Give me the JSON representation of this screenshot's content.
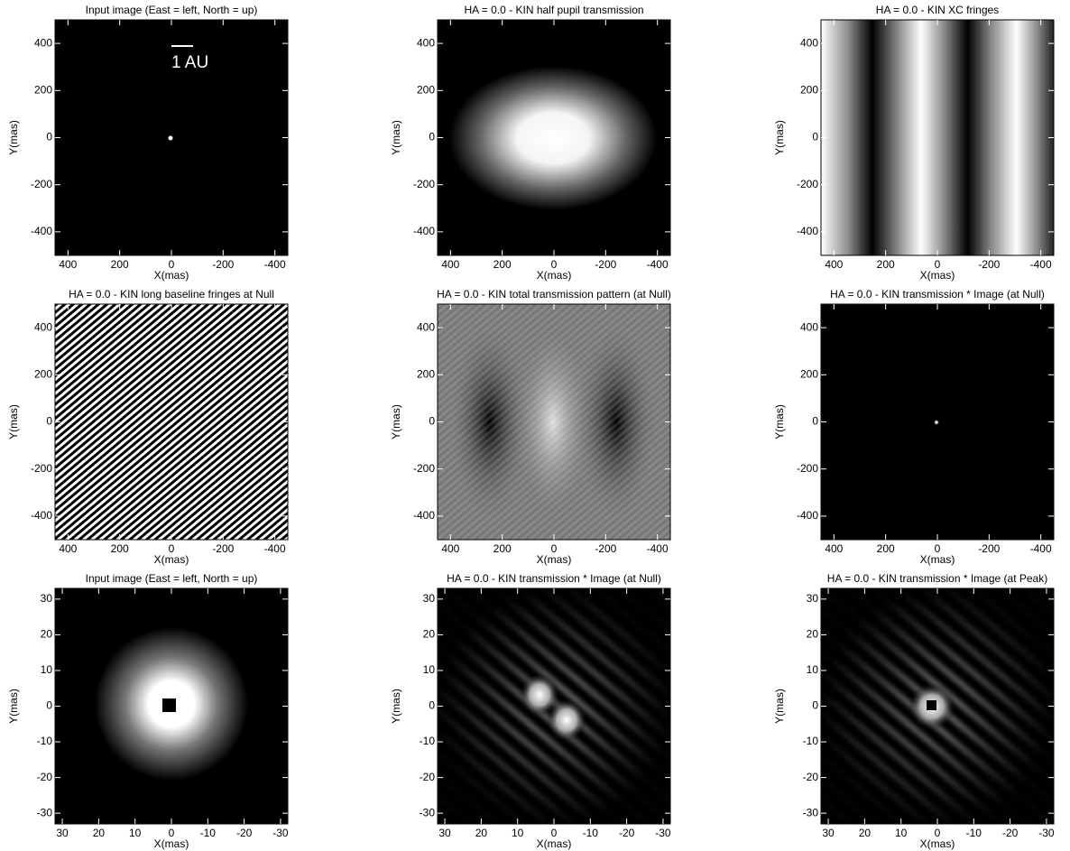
{
  "chart_data": [
    {
      "type": "image",
      "title": "Input image (East = left, North = up)",
      "annotation": "1 AU",
      "xlabel": "X(mas)",
      "ylabel": "Y(mas)",
      "xlim": [
        450,
        -450
      ],
      "ylim": [
        -500,
        500
      ],
      "xticks": [
        400,
        200,
        0,
        -200,
        -400
      ],
      "yticks": [
        -400,
        -200,
        0,
        200,
        400
      ]
    },
    {
      "type": "image",
      "title": "HA = 0.0 - KIN half pupil transmission",
      "xlabel": "X(mas)",
      "ylabel": "Y(mas)",
      "xlim": [
        450,
        -450
      ],
      "ylim": [
        -500,
        500
      ],
      "xticks": [
        400,
        200,
        0,
        -200,
        -400
      ],
      "yticks": [
        -400,
        -200,
        0,
        200,
        400
      ]
    },
    {
      "type": "image",
      "title": "HA = 0.0 - KIN XC fringes",
      "xlabel": "X(mas)",
      "ylabel": "Y(mas)",
      "xlim": [
        450,
        -450
      ],
      "ylim": [
        -500,
        500
      ],
      "xticks": [
        400,
        200,
        0,
        -200,
        -400
      ],
      "yticks": [
        -400,
        -200,
        0,
        200,
        400
      ]
    },
    {
      "type": "image",
      "title": "HA = 0.0 - KIN long baseline fringes at Null",
      "xlabel": "X(mas)",
      "ylabel": "Y(mas)",
      "xlim": [
        450,
        -450
      ],
      "ylim": [
        -500,
        500
      ],
      "xticks": [
        400,
        200,
        0,
        -200,
        -400
      ],
      "yticks": [
        -400,
        -200,
        0,
        200,
        400
      ]
    },
    {
      "type": "image",
      "title": "HA = 0.0 - KIN total transmission pattern (at Null)",
      "xlabel": "X(mas)",
      "ylabel": "Y(mas)",
      "xlim": [
        450,
        -450
      ],
      "ylim": [
        -500,
        500
      ],
      "xticks": [
        400,
        200,
        0,
        -200,
        -400
      ],
      "yticks": [
        -400,
        -200,
        0,
        200,
        400
      ]
    },
    {
      "type": "image",
      "title": "HA = 0.0 - KIN transmission * Image (at Null)",
      "xlabel": "X(mas)",
      "ylabel": "Y(mas)",
      "xlim": [
        450,
        -450
      ],
      "ylim": [
        -500,
        500
      ],
      "xticks": [
        400,
        200,
        0,
        -200,
        -400
      ],
      "yticks": [
        -400,
        -200,
        0,
        200,
        400
      ]
    },
    {
      "type": "image",
      "title": "Input image (East = left, North = up)",
      "xlabel": "X(mas)",
      "ylabel": "Y(mas)",
      "xlim": [
        32,
        -32
      ],
      "ylim": [
        -33,
        33
      ],
      "xticks": [
        30,
        20,
        10,
        0,
        -10,
        -20,
        -30
      ],
      "yticks": [
        -30,
        -20,
        -10,
        0,
        10,
        20,
        30
      ]
    },
    {
      "type": "image",
      "title": "HA = 0.0 - KIN transmission * Image (at Null)",
      "xlabel": "X(mas)",
      "ylabel": "Y(mas)",
      "xlim": [
        32,
        -32
      ],
      "ylim": [
        -33,
        33
      ],
      "xticks": [
        30,
        20,
        10,
        0,
        -10,
        -20,
        -30
      ],
      "yticks": [
        -30,
        -20,
        -10,
        0,
        10,
        20,
        30
      ]
    },
    {
      "type": "image",
      "title": "HA = 0.0 - KIN transmission * Image (at Peak)",
      "xlabel": "X(mas)",
      "ylabel": "Y(mas)",
      "xlim": [
        32,
        -32
      ],
      "ylim": [
        -33,
        33
      ],
      "xticks": [
        30,
        20,
        10,
        0,
        -10,
        -20,
        -30
      ],
      "yticks": [
        -30,
        -20,
        -10,
        0,
        10,
        20,
        30
      ]
    }
  ]
}
